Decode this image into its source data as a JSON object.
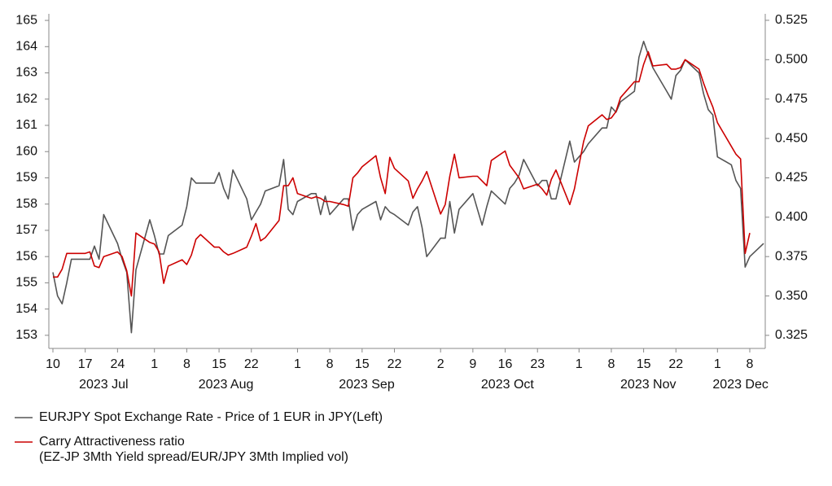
{
  "chart_data": {
    "type": "line",
    "x": [
      "2023-07-10",
      "2023-07-11",
      "2023-07-12",
      "2023-07-13",
      "2023-07-14",
      "2023-07-17",
      "2023-07-18",
      "2023-07-19",
      "2023-07-20",
      "2023-07-21",
      "2023-07-24",
      "2023-07-25",
      "2023-07-26",
      "2023-07-27",
      "2023-07-28",
      "2023-07-31",
      "2023-08-01",
      "2023-08-02",
      "2023-08-03",
      "2023-08-04",
      "2023-08-07",
      "2023-08-08",
      "2023-08-09",
      "2023-08-10",
      "2023-08-11",
      "2023-08-14",
      "2023-08-15",
      "2023-08-16",
      "2023-08-17",
      "2023-08-18",
      "2023-08-21",
      "2023-08-22",
      "2023-08-23",
      "2023-08-24",
      "2023-08-25",
      "2023-08-28",
      "2023-08-29",
      "2023-08-30",
      "2023-08-31",
      "2023-09-01",
      "2023-09-04",
      "2023-09-05",
      "2023-09-06",
      "2023-09-07",
      "2023-09-08",
      "2023-09-11",
      "2023-09-12",
      "2023-09-13",
      "2023-09-14",
      "2023-09-15",
      "2023-09-18",
      "2023-09-19",
      "2023-09-20",
      "2023-09-21",
      "2023-09-22",
      "2023-09-25",
      "2023-09-26",
      "2023-09-27",
      "2023-09-28",
      "2023-09-29",
      "2023-10-02",
      "2023-10-03",
      "2023-10-04",
      "2023-10-05",
      "2023-10-06",
      "2023-10-09",
      "2023-10-10",
      "2023-10-11",
      "2023-10-12",
      "2023-10-13",
      "2023-10-16",
      "2023-10-17",
      "2023-10-18",
      "2023-10-19",
      "2023-10-20",
      "2023-10-23",
      "2023-10-24",
      "2023-10-25",
      "2023-10-26",
      "2023-10-27",
      "2023-10-30",
      "2023-10-31",
      "2023-11-01",
      "2023-11-02",
      "2023-11-03",
      "2023-11-06",
      "2023-11-07",
      "2023-11-08",
      "2023-11-09",
      "2023-11-10",
      "2023-11-13",
      "2023-11-14",
      "2023-11-15",
      "2023-11-16",
      "2023-11-17",
      "2023-11-20",
      "2023-11-21",
      "2023-11-22",
      "2023-11-23",
      "2023-11-24",
      "2023-11-27",
      "2023-11-28",
      "2023-11-29",
      "2023-11-30",
      "2023-12-01",
      "2023-12-04",
      "2023-12-05",
      "2023-12-06",
      "2023-12-07",
      "2023-12-08",
      "2023-12-11"
    ],
    "series": [
      {
        "name": "EURJPY Spot Exchange Rate - Price of 1 EUR in JPY(Left)",
        "color": "#555555",
        "axis": "y",
        "values": [
          155.4,
          154.5,
          154.2,
          155.0,
          155.9,
          155.9,
          155.9,
          156.4,
          155.9,
          157.6,
          156.5,
          155.9,
          155.4,
          153.1,
          155.5,
          157.4,
          156.8,
          156.1,
          156.1,
          156.8,
          157.2,
          157.9,
          159.0,
          158.8,
          158.8,
          158.8,
          159.2,
          158.6,
          158.2,
          159.3,
          158.2,
          157.4,
          157.7,
          158.0,
          158.5,
          158.7,
          159.7,
          157.8,
          157.6,
          158.1,
          158.4,
          158.4,
          157.6,
          158.3,
          157.6,
          158.2,
          158.2,
          157.0,
          157.6,
          157.8,
          158.1,
          157.4,
          157.9,
          157.7,
          157.6,
          157.2,
          157.7,
          157.9,
          157.1,
          156.0,
          156.7,
          156.7,
          158.1,
          156.9,
          157.8,
          158.4,
          157.8,
          157.2,
          157.9,
          158.5,
          158.0,
          158.6,
          158.8,
          159.1,
          159.7,
          158.7,
          158.9,
          158.9,
          158.2,
          158.2,
          160.4,
          159.6,
          159.8,
          160.0,
          160.3,
          160.9,
          160.9,
          161.7,
          161.5,
          161.9,
          162.3,
          163.6,
          164.2,
          163.7,
          163.2,
          162.3,
          162.0,
          162.9,
          163.1,
          163.5,
          163.0,
          162.2,
          161.6,
          161.4,
          159.8,
          159.5,
          158.9,
          158.6,
          155.6,
          156.0,
          156.5
        ]
      },
      {
        "name": "Carry Attractiveness ratio\n(EZ-JP 3Mth Yield spread/EUR/JPY 3Mth Implied vol)",
        "color": "#cc0000",
        "axis": "y2",
        "values": [
          0.362,
          0.362,
          0.367,
          0.377,
          0.377,
          0.377,
          0.378,
          0.369,
          0.368,
          0.375,
          0.378,
          0.375,
          0.366,
          0.35,
          0.39,
          0.384,
          0.383,
          0.378,
          0.358,
          0.369,
          0.373,
          0.37,
          0.376,
          0.386,
          0.389,
          0.381,
          0.381,
          0.378,
          0.376,
          0.377,
          0.381,
          0.388,
          0.396,
          0.385,
          0.387,
          0.398,
          0.42,
          0.42,
          0.425,
          0.415,
          0.412,
          0.413,
          0.412,
          0.41,
          0.41,
          0.408,
          0.407,
          0.425,
          0.428,
          0.432,
          0.439,
          0.425,
          0.415,
          0.438,
          0.431,
          0.423,
          0.412,
          0.418,
          0.423,
          0.429,
          0.402,
          0.408,
          0.426,
          0.44,
          0.425,
          0.426,
          0.426,
          0.423,
          0.42,
          0.436,
          0.442,
          0.433,
          0.429,
          0.425,
          0.418,
          0.421,
          0.418,
          0.414,
          0.424,
          0.43,
          0.408,
          0.418,
          0.433,
          0.448,
          0.458,
          0.465,
          0.462,
          0.463,
          0.467,
          0.476,
          0.486,
          0.486,
          0.497,
          0.505,
          0.496,
          0.497,
          0.494,
          0.494,
          0.495,
          0.5,
          0.494,
          0.485,
          0.477,
          0.47,
          0.46,
          0.445,
          0.44,
          0.437,
          0.377,
          0.39,
          null
        ]
      }
    ],
    "xlim": [
      "2023-07-10",
      "2023-12-11"
    ],
    "xticks": [
      {
        "value": "2023-07-10",
        "label": "10"
      },
      {
        "value": "2023-07-17",
        "label": "17"
      },
      {
        "value": "2023-07-24",
        "label": "24"
      },
      {
        "value": "2023-08-01",
        "label": "1"
      },
      {
        "value": "2023-08-08",
        "label": "8"
      },
      {
        "value": "2023-08-15",
        "label": "15"
      },
      {
        "value": "2023-08-22",
        "label": "22"
      },
      {
        "value": "2023-09-01",
        "label": "1"
      },
      {
        "value": "2023-09-08",
        "label": "8"
      },
      {
        "value": "2023-09-15",
        "label": "15"
      },
      {
        "value": "2023-09-22",
        "label": "22"
      },
      {
        "value": "2023-10-02",
        "label": "2"
      },
      {
        "value": "2023-10-09",
        "label": "9"
      },
      {
        "value": "2023-10-16",
        "label": "16"
      },
      {
        "value": "2023-10-23",
        "label": "23"
      },
      {
        "value": "2023-11-01",
        "label": "1"
      },
      {
        "value": "2023-11-08",
        "label": "8"
      },
      {
        "value": "2023-11-15",
        "label": "15"
      },
      {
        "value": "2023-11-22",
        "label": "22"
      },
      {
        "value": "2023-12-01",
        "label": "1"
      },
      {
        "value": "2023-12-08",
        "label": "8"
      }
    ],
    "x_month_labels": [
      {
        "value": "2023-07",
        "label": "2023 Jul"
      },
      {
        "value": "2023-08",
        "label": "2023 Aug"
      },
      {
        "value": "2023-09",
        "label": "2023 Sep"
      },
      {
        "value": "2023-10",
        "label": "2023 Oct"
      },
      {
        "value": "2023-11",
        "label": "2023 Nov"
      },
      {
        "value": "2023-12",
        "label": "2023 Dec"
      }
    ],
    "ylim": [
      152.5,
      165.25
    ],
    "yticks": [
      153,
      154,
      155,
      156,
      157,
      158,
      159,
      160,
      161,
      162,
      163,
      164,
      165
    ],
    "y2lim": [
      0.3167,
      0.5291
    ],
    "y2ticks": [
      0.325,
      {
        "value": 0.35,
        "label": "0.350"
      },
      0.375,
      {
        "value": 0.4,
        "label": "0.400"
      },
      0.425,
      {
        "value": 0.45,
        "label": "0.450"
      },
      0.475,
      {
        "value": 0.5,
        "label": "0.500"
      },
      0.525
    ],
    "grid": false
  }
}
